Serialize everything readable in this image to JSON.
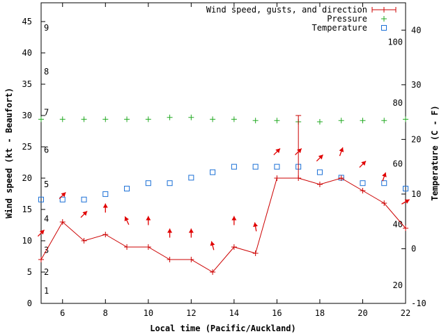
{
  "chart_data": {
    "type": "line",
    "xlabel": "Local time (Pacific/Auckland)",
    "ylabel": "Wind speed (kt - Beaufort)",
    "y2label": "Temperature (C - F)",
    "xlim": [
      5,
      22
    ],
    "ylim": [
      0,
      48
    ],
    "y2lim": [
      -10,
      45
    ],
    "grid": false,
    "legend_position": "top-right",
    "x_ticks": [
      6,
      8,
      10,
      12,
      14,
      16,
      18,
      20,
      22
    ],
    "y_ticks": [
      0,
      5,
      10,
      15,
      20,
      25,
      30,
      35,
      40,
      45
    ],
    "y2_ticks_celsius": [
      -10,
      0,
      10,
      20,
      30,
      40
    ],
    "fahrenheit_ticks": [
      20,
      40,
      60,
      80,
      100
    ],
    "beaufort_ticks": [
      1,
      2,
      3,
      4,
      5,
      6,
      7,
      8,
      9
    ],
    "legend": [
      {
        "name": "Wind speed, gusts, and direction",
        "color": "#cc0000"
      },
      {
        "name": "Pressure",
        "color": "#22aa22"
      },
      {
        "name": "Temperature",
        "color": "#1a6fd6"
      }
    ],
    "series": [
      {
        "name": "Wind speed, gusts, and direction",
        "axis": "y",
        "x": [
          5,
          6,
          7,
          8,
          9,
          10,
          11,
          12,
          13,
          14,
          15,
          16,
          17,
          18,
          19,
          20,
          21,
          22
        ],
        "values": [
          7,
          13,
          10,
          11,
          9,
          9,
          7,
          7,
          5,
          9,
          8,
          20,
          20,
          19,
          20,
          18,
          16,
          12
        ],
        "gust": {
          "x": 17,
          "value": 30
        },
        "direction_deg": [
          225,
          225,
          225,
          180,
          155,
          180,
          180,
          180,
          165,
          180,
          170,
          225,
          225,
          225,
          200,
          225,
          200,
          240
        ]
      },
      {
        "name": "Pressure",
        "axis": "y",
        "x": [
          5,
          6,
          7,
          8,
          9,
          10,
          11,
          12,
          13,
          14,
          15,
          16,
          17,
          18,
          19,
          20,
          21,
          22
        ],
        "values": [
          29.4,
          29.4,
          29.4,
          29.4,
          29.4,
          29.4,
          29.7,
          29.7,
          29.4,
          29.4,
          29.2,
          29.2,
          29.0,
          29.0,
          29.2,
          29.2,
          29.2,
          29.4
        ]
      },
      {
        "name": "Temperature",
        "axis": "y2",
        "x": [
          5,
          6,
          7,
          8,
          9,
          10,
          11,
          12,
          13,
          14,
          15,
          16,
          17,
          18,
          19,
          20,
          21,
          22
        ],
        "values": [
          9,
          9,
          9,
          10,
          11,
          12,
          12,
          13,
          14,
          15,
          15,
          15,
          15,
          14,
          13,
          12,
          12,
          11
        ]
      }
    ]
  }
}
